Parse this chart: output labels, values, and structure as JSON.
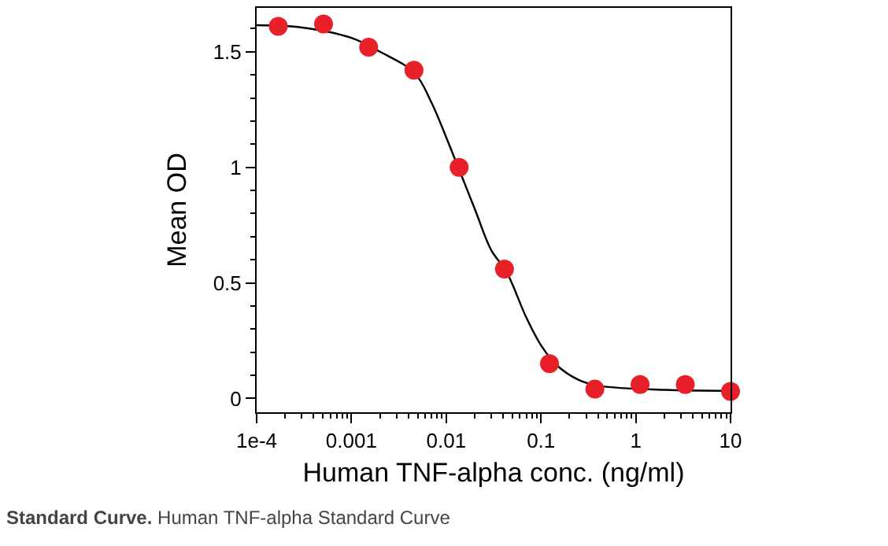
{
  "chart_data": {
    "type": "scatter",
    "xlabel": "Human TNF-alpha conc. (ng/ml)",
    "ylabel": "Mean OD",
    "log": "x",
    "grid": false,
    "marker": "circle",
    "x": [
      0.000169,
      0.000508,
      0.00152,
      0.00457,
      0.0137,
      0.0412,
      0.123,
      0.37,
      1.11,
      3.33,
      10
    ],
    "series": [
      {
        "color": "#e8202a",
        "values": [
          1.61,
          1.62,
          1.52,
          1.42,
          1.0,
          0.56,
          0.15,
          0.04,
          0.06,
          0.06,
          0.03
        ]
      },
      {
        "type": "line",
        "color": "#000000",
        "marker": "none",
        "line_style": "solid",
        "x": [
          0.0001,
          0.0003,
          0.001,
          0.002,
          0.0046,
          0.007,
          0.01,
          0.02,
          0.03,
          0.043,
          0.07,
          0.1,
          0.15,
          0.25,
          0.4,
          2,
          10
        ],
        "values": [
          1.615,
          1.605,
          1.56,
          1.5,
          1.41,
          1.28,
          1.13,
          0.82,
          0.64,
          0.55,
          0.35,
          0.23,
          0.14,
          0.08,
          0.055,
          0.037,
          0.033
        ]
      }
    ],
    "xlim": [
      0.0001,
      10
    ],
    "xticks": [
      {
        "value": 0.0001,
        "label": "1e-4"
      },
      0.001,
      0.01,
      0.1,
      1,
      10
    ],
    "ylim": [
      -0.06,
      1.69
    ],
    "yticks": [
      0,
      0.5,
      1,
      1.5
    ],
    "annotations": [
      "Standard Curve. Human TNF-alpha Standard Curve"
    ]
  }
}
